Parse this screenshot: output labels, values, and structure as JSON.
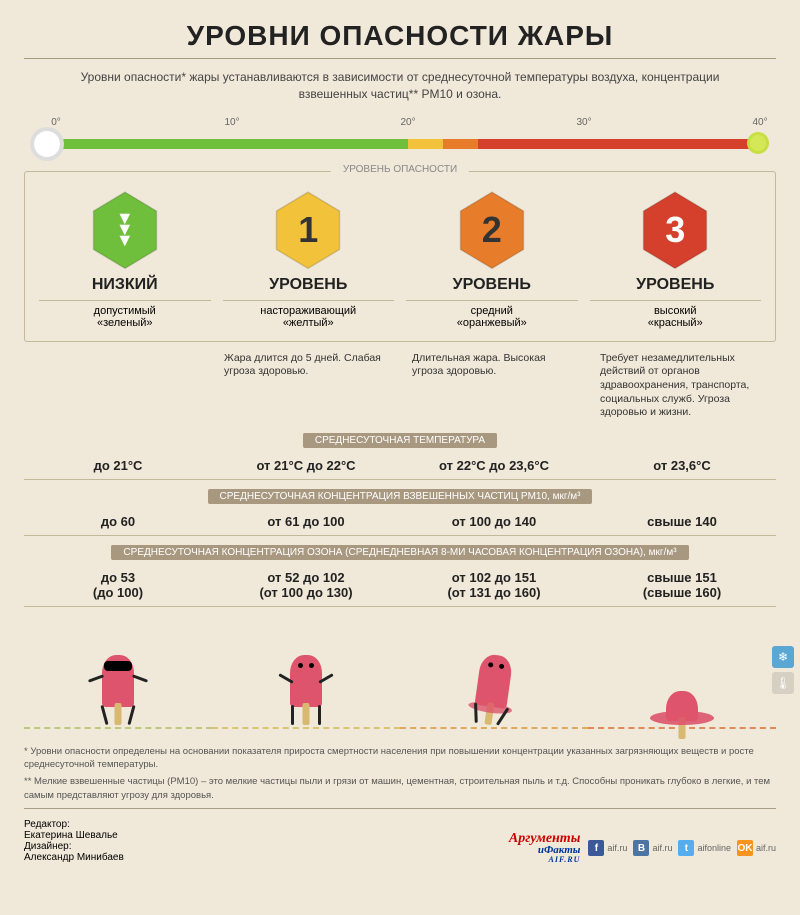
{
  "colors": {
    "bg": "#f0e8d8",
    "border": "#c4b998",
    "badge_bg": "#a89880"
  },
  "title": "УРОВНИ ОПАСНОСТИ ЖАРЫ",
  "intro": "Уровни опасности* жары устанавливаются в зависимости от среднесуточной температуры воздуха, концентрации взвешенных частиц** PM10 и озона.",
  "thermometer": {
    "ticks": [
      {
        "label": "0°",
        "pos": 0
      },
      {
        "label": "10°",
        "pos": 25
      },
      {
        "label": "20°",
        "pos": 50
      },
      {
        "label": "30°",
        "pos": 75
      },
      {
        "label": "40°",
        "pos": 100
      }
    ],
    "segments": [
      {
        "color": "#6fbf3d",
        "width": 50
      },
      {
        "color": "#f2c23a",
        "width": 5
      },
      {
        "color": "#e77c2a",
        "width": 5
      },
      {
        "color": "#d5402c",
        "width": 40
      }
    ]
  },
  "levels_header": "УРОВЕНЬ ОПАСНОСТИ",
  "levels": [
    {
      "badge_type": "arrows",
      "badge_color": "#6fbf3d",
      "badge_text_color": "#fff",
      "name": "НИЗКИЙ",
      "sub1": "допустимый",
      "sub2": "«зеленый»"
    },
    {
      "badge_type": "num",
      "num": "1",
      "badge_color": "#f2c23a",
      "badge_text_color": "#333",
      "name": "УРОВЕНЬ",
      "sub1": "настораживающий",
      "sub2": "«желтый»"
    },
    {
      "badge_type": "num",
      "num": "2",
      "badge_color": "#e77c2a",
      "badge_text_color": "#333",
      "name": "УРОВЕНЬ",
      "sub1": "средний",
      "sub2": "«оранжевый»"
    },
    {
      "badge_type": "num",
      "num": "3",
      "badge_color": "#d5402c",
      "badge_text_color": "#fff",
      "name": "УРОВЕНЬ",
      "sub1": "высокий",
      "sub2": "«красный»"
    }
  ],
  "descriptions": [
    "",
    "Жара длится до 5 дней. Слабая угроза здоровью.",
    "Длительная жара. Высокая угроза здоровью.",
    "Требует незамедлительных действий от органов здравоохранения, транспорта, социальных служб. Угроза здоровью и жизни."
  ],
  "sections": [
    {
      "title": "СРЕДНЕСУТОЧНАЯ ТЕМПЕРАТУРА",
      "values": [
        {
          "main": "до 21°С"
        },
        {
          "main": "от 21°С до 22°С"
        },
        {
          "main": "от 22°С до 23,6°С"
        },
        {
          "main": "от 23,6°С"
        }
      ]
    },
    {
      "title": "СРЕДНЕСУТОЧНАЯ КОНЦЕНТРАЦИЯ ВЗВЕШЕННЫХ ЧАСТИЦ PM10, мкг/м³",
      "values": [
        {
          "main": "до 60"
        },
        {
          "main": "от 61 до 100"
        },
        {
          "main": "от 100 до 140"
        },
        {
          "main": "свыше 140"
        }
      ]
    },
    {
      "title": "СРЕДНЕСУТОЧНАЯ КОНЦЕНТРАЦИЯ ОЗОНА (СРЕДНЕДНЕВНАЯ 8-МИ ЧАСОВАЯ КОНЦЕНТРАЦИЯ ОЗОНА), мкг/м³",
      "values": [
        {
          "main": "до 53",
          "sub": "(до 100)"
        },
        {
          "main": "от 52 до 102",
          "sub": "(от 100 до 130)"
        },
        {
          "main": "от 102 до 151",
          "sub": "(от 131 до 160)"
        },
        {
          "main": "свыше 151",
          "sub": "(свыше 160)"
        }
      ]
    }
  ],
  "illustrations": {
    "ice_colors": [
      "#dd546c",
      "#dd546c",
      "#dd546c",
      "#dd546c"
    ],
    "ground_colors": [
      "#bfc97d",
      "#d9c570",
      "#e0a95e",
      "#df8a58"
    ]
  },
  "side_buttons": [
    {
      "icon": "❄",
      "bg": "#5aa7d4"
    },
    {
      "icon": "🌡",
      "bg": "#d5d0c2"
    }
  ],
  "footnotes": [
    "* Уровни опасности определены на основании показателя прироста смертности населения при повышении концентрации указанных загрязняющих веществ и росте среднесуточной температуры.",
    "** Мелкие взвешенные частицы (PM10) – это мелкие частицы пыли и грязи от машин, цементная, строительная пыль и т.д. Способны проникать глубоко в легкие, и тем самым представляют угрозу для здоровья."
  ],
  "credits": {
    "editor_label": "Редактор:",
    "editor": "Екатерина Шевалье",
    "designer_label": "Дизайнер:",
    "designer": "Александр Минибаев",
    "logo_l1": "Аргументы",
    "logo_l2": "иФакты",
    "logo_l3": "AIF.RU",
    "social": [
      {
        "icon": "f",
        "bg": "#3b5998",
        "label": "aif.ru"
      },
      {
        "icon": "B",
        "bg": "#4c75a3",
        "label": "aif.ru"
      },
      {
        "icon": "t",
        "bg": "#55acee",
        "label": "aifonline"
      },
      {
        "icon": "OK",
        "bg": "#f7931e",
        "label": "aif.ru"
      }
    ]
  }
}
